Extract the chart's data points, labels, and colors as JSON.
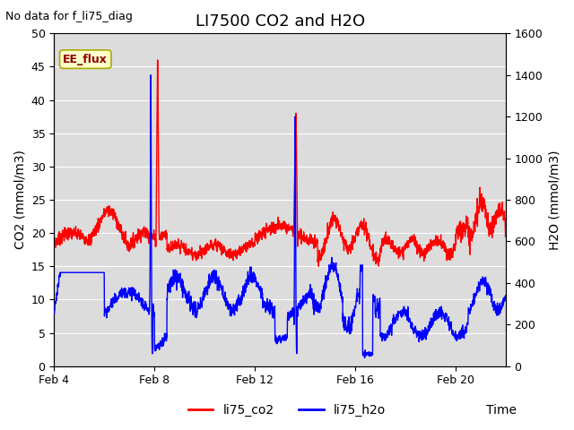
{
  "title": "LI7500 CO2 and H2O",
  "top_left_text": "No data for f_li75_diag",
  "xlabel": "Time",
  "ylabel_left": "CO2 (mmol/m3)",
  "ylabel_right": "H2O (mmol/m3)",
  "xlim": [
    0,
    18
  ],
  "ylim_left": [
    0,
    50
  ],
  "ylim_right": [
    0,
    1600
  ],
  "xtick_positions": [
    0,
    4,
    8,
    12,
    16
  ],
  "xtick_labels": [
    "Feb 4",
    "Feb 8",
    "Feb 12",
    "Feb 16",
    "Feb 20"
  ],
  "ytick_left": [
    0,
    5,
    10,
    15,
    20,
    25,
    30,
    35,
    40,
    45,
    50
  ],
  "ytick_right": [
    0,
    200,
    400,
    600,
    800,
    1000,
    1200,
    1400,
    1600
  ],
  "legend_labels": [
    "li75_co2",
    "li75_h2o"
  ],
  "ee_flux_label": "EE_flux",
  "ee_flux_facecolor": "#ffffcc",
  "ee_flux_edgecolor": "#aaaa00",
  "ee_flux_textcolor": "#8b0000",
  "plot_bg_color": "#dcdcdc",
  "grid_color": "#ffffff",
  "title_fontsize": 13,
  "label_fontsize": 10,
  "tick_fontsize": 9,
  "legend_fontsize": 10,
  "top_left_fontsize": 9
}
